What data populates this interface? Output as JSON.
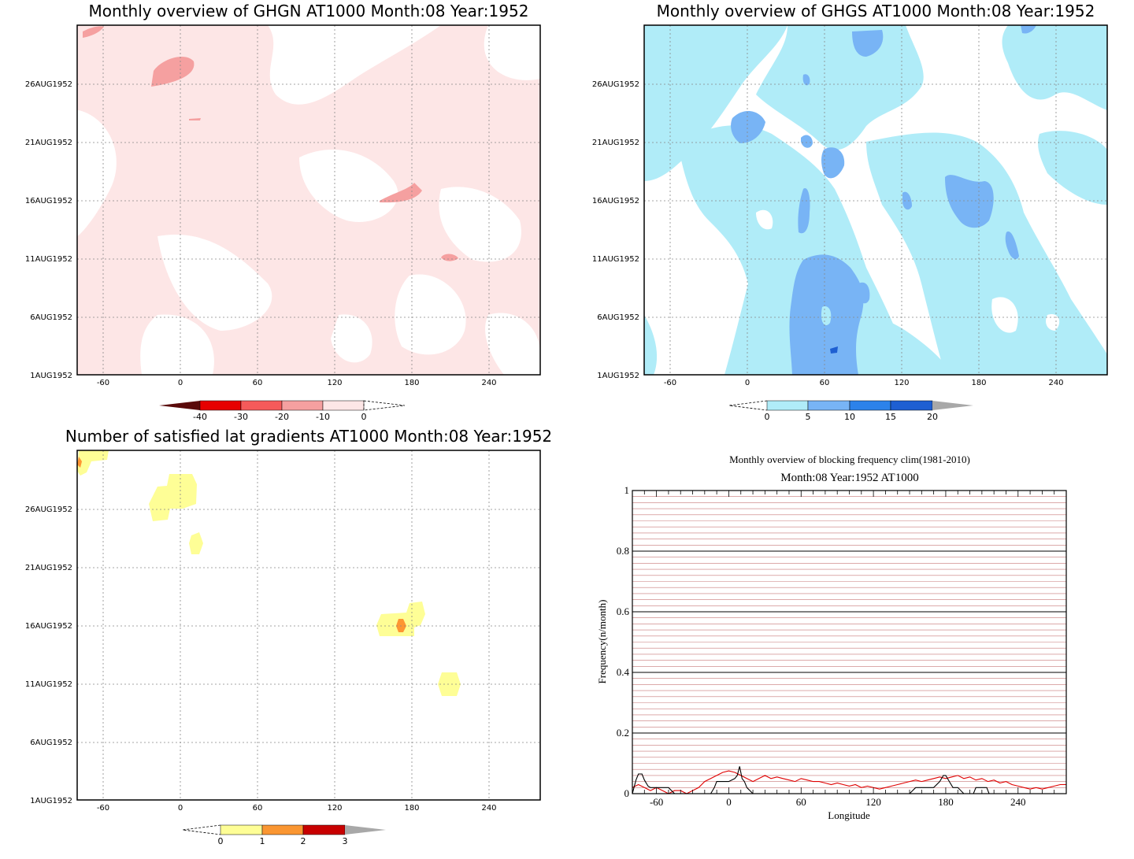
{
  "panels": [
    {
      "id": "ghgn",
      "title": "Monthly overview of GHGN AT1000 Month:08 Year:1952",
      "x_ticks": [
        "-60",
        "0",
        "60",
        "120",
        "180",
        "240"
      ],
      "y_ticks": [
        "1AUG1952",
        "6AUG1952",
        "11AUG1952",
        "16AUG1952",
        "21AUG1952",
        "26AUG1952"
      ],
      "colorbar": {
        "labels": [
          "-40",
          "-30",
          "-20",
          "-10",
          "0"
        ],
        "colors": [
          "#5a0a0a",
          "#e60000",
          "#f55a5a",
          "#f5a0a0",
          "#fde6e6"
        ]
      }
    },
    {
      "id": "ghgs",
      "title": "Monthly overview of GHGS AT1000 Month:08 Year:1952",
      "x_ticks": [
        "-60",
        "0",
        "60",
        "120",
        "180",
        "240"
      ],
      "y_ticks": [
        "1AUG1952",
        "6AUG1952",
        "11AUG1952",
        "16AUG1952",
        "21AUG1952",
        "26AUG1952"
      ],
      "colorbar": {
        "labels": [
          "0",
          "5",
          "10",
          "15",
          "20"
        ],
        "colors": [
          "#b0ecf8",
          "#78b4f5",
          "#2c82ea",
          "#1e5fd2",
          "#a8a8a8"
        ]
      }
    },
    {
      "id": "gradients",
      "title": "Number of satisfied lat gradients AT1000 Month:08 Year:1952",
      "x_ticks": [
        "-60",
        "0",
        "60",
        "120",
        "180",
        "240"
      ],
      "y_ticks": [
        "1AUG1952",
        "6AUG1952",
        "11AUG1952",
        "16AUG1952",
        "21AUG1952",
        "26AUG1952"
      ],
      "colorbar": {
        "labels": [
          "0",
          "1",
          "2",
          "3"
        ],
        "colors": [
          "#fefe96",
          "#fa9632",
          "#c80000",
          "#a8a8a8"
        ]
      }
    }
  ],
  "chart_data": {
    "type": "line",
    "title": "Monthly overview of blocking frequency clim(1981-2010)",
    "subtitle": "Month:08 Year:1952  AT1000",
    "xlabel": "Longitude",
    "ylabel": "Frequency(n/month)",
    "x_ticks": [
      "-60",
      "0",
      "60",
      "120",
      "180",
      "240"
    ],
    "y_ticks": [
      "0",
      "0.2",
      "0.4",
      "0.6",
      "0.8",
      "1"
    ],
    "xlim": [
      -80,
      280
    ],
    "ylim": [
      0,
      1
    ],
    "series": [
      {
        "color": "#e00000",
        "x": [
          -80,
          -75,
          -70,
          -65,
          -60,
          -55,
          -50,
          -45,
          -40,
          -35,
          -30,
          -25,
          -20,
          -15,
          -10,
          -5,
          0,
          5,
          10,
          15,
          20,
          25,
          30,
          35,
          40,
          45,
          50,
          55,
          60,
          65,
          70,
          75,
          80,
          85,
          90,
          95,
          100,
          105,
          110,
          115,
          120,
          125,
          130,
          135,
          140,
          145,
          150,
          155,
          160,
          165,
          170,
          175,
          180,
          185,
          190,
          195,
          200,
          205,
          210,
          215,
          220,
          225,
          230,
          235,
          240,
          245,
          250,
          255,
          260,
          265,
          270,
          275,
          280
        ],
        "y": [
          0.02,
          0.03,
          0.02,
          0.01,
          0.02,
          0.01,
          0.0,
          0.01,
          0.01,
          0.0,
          0.01,
          0.02,
          0.04,
          0.05,
          0.06,
          0.07,
          0.075,
          0.07,
          0.06,
          0.05,
          0.04,
          0.05,
          0.06,
          0.05,
          0.055,
          0.05,
          0.045,
          0.04,
          0.05,
          0.045,
          0.04,
          0.04,
          0.035,
          0.03,
          0.035,
          0.03,
          0.025,
          0.03,
          0.02,
          0.025,
          0.02,
          0.015,
          0.02,
          0.025,
          0.03,
          0.035,
          0.04,
          0.045,
          0.04,
          0.045,
          0.05,
          0.055,
          0.05,
          0.055,
          0.06,
          0.05,
          0.055,
          0.045,
          0.05,
          0.04,
          0.045,
          0.035,
          0.04,
          0.03,
          0.025,
          0.02,
          0.015,
          0.02,
          0.015,
          0.02,
          0.025,
          0.03,
          0.03
        ]
      },
      {
        "color": "#000000",
        "x": [
          -80,
          -77,
          -75,
          -72,
          -70,
          -67,
          -65,
          -60,
          -55,
          -50,
          -45,
          -40,
          -35,
          -30,
          -25,
          -20,
          -15,
          -12,
          -10,
          0,
          5,
          7,
          9,
          11,
          13,
          15,
          20,
          60,
          100,
          120,
          150,
          155,
          158,
          160,
          170,
          175,
          178,
          180,
          183,
          186,
          190,
          195,
          198,
          200,
          203,
          205,
          210,
          212,
          214,
          216,
          218,
          220,
          240,
          280
        ],
        "y": [
          0.0,
          0.045,
          0.065,
          0.065,
          0.045,
          0.025,
          0.02,
          0.02,
          0.02,
          0.02,
          0.0,
          0.0,
          0.0,
          0.0,
          0.0,
          0.0,
          0.0,
          0.02,
          0.04,
          0.04,
          0.05,
          0.06,
          0.09,
          0.05,
          0.04,
          0.02,
          0.0,
          0.0,
          0.0,
          0.0,
          0.0,
          0.02,
          0.02,
          0.02,
          0.02,
          0.04,
          0.06,
          0.06,
          0.04,
          0.02,
          0.02,
          0.0,
          0.0,
          0.0,
          0.0,
          0.02,
          0.02,
          0.02,
          0.02,
          0.0,
          0.0,
          0.0,
          0.0,
          0.0
        ]
      }
    ]
  }
}
